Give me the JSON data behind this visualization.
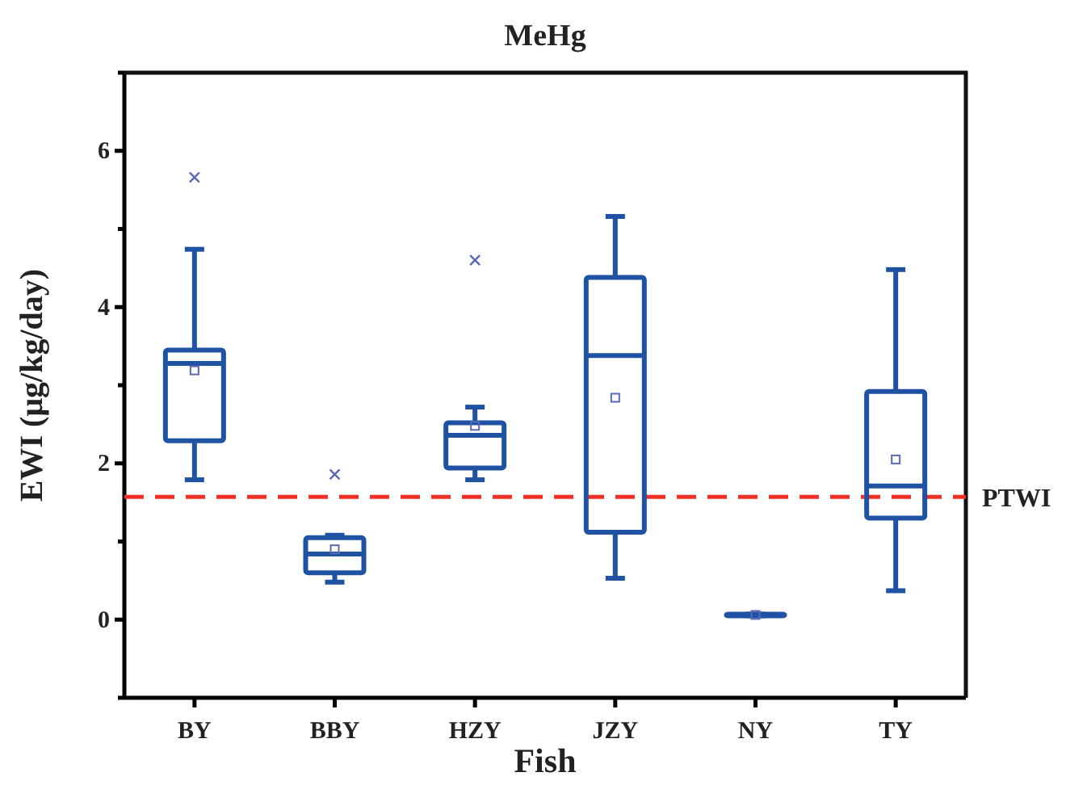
{
  "chart_data": {
    "type": "box",
    "title": "MeHg",
    "xlabel": "Fish",
    "ylabel": "EWI (μg/kg/day)",
    "categories": [
      "BY",
      "BBY",
      "HZY",
      "JZY",
      "NY",
      "TY"
    ],
    "color": "#1f52a3",
    "boxes": [
      {
        "low": 1.79,
        "q1": 2.29,
        "median": 3.28,
        "q3": 3.45,
        "high": 4.74,
        "mean": 3.19,
        "outliers": [
          5.66
        ]
      },
      {
        "low": 0.48,
        "q1": 0.6,
        "median": 0.84,
        "q3": 1.05,
        "high": 1.08,
        "mean": 0.9,
        "outliers": [
          1.86
        ]
      },
      {
        "low": 1.79,
        "q1": 1.94,
        "median": 2.36,
        "q3": 2.52,
        "high": 2.72,
        "mean": 2.48,
        "outliers": [
          4.6
        ]
      },
      {
        "low": 0.53,
        "q1": 1.12,
        "median": 3.38,
        "q3": 4.38,
        "high": 5.16,
        "mean": 2.84
      },
      {
        "low": 0.05,
        "q1": 0.05,
        "median": 0.06,
        "q3": 0.07,
        "high": 0.07,
        "mean": 0.06
      },
      {
        "low": 0.37,
        "q1": 1.3,
        "median": 1.71,
        "q3": 2.92,
        "high": 4.48,
        "mean": 2.05
      }
    ],
    "ylim": [
      -1,
      7
    ],
    "yticks": [
      {
        "value": -1,
        "label": null
      },
      0,
      {
        "value": 1,
        "label": null
      },
      2,
      {
        "value": 3,
        "label": null
      },
      4,
      {
        "value": 5,
        "label": null
      },
      6,
      {
        "value": 7,
        "label": null
      }
    ],
    "ref_lines": [
      {
        "axis": "y",
        "value": 1.57,
        "label": "PTWI",
        "color": "#ee3124",
        "line_style": "dashed"
      }
    ],
    "grid": false
  }
}
